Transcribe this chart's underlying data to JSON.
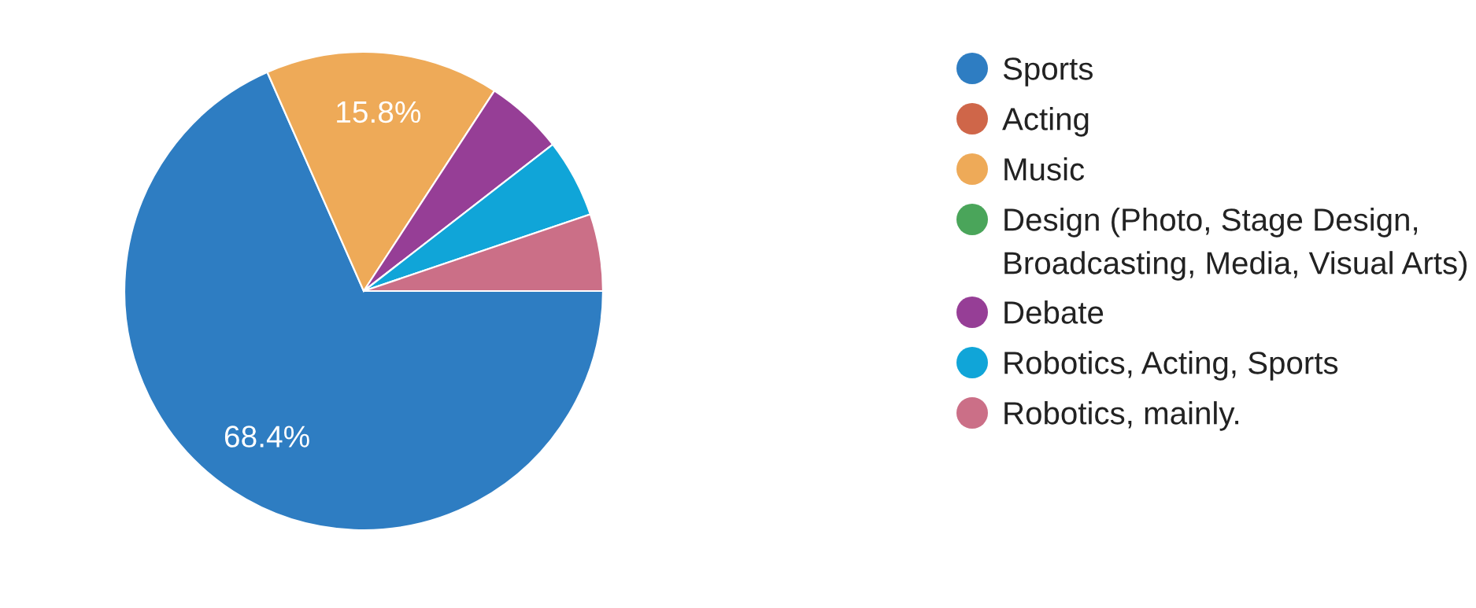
{
  "chart_data": {
    "type": "pie",
    "categories": [
      "Sports",
      "Acting",
      "Music",
      "Design (Photo, Stage Design, Broadcasting, Media, Visual Arts)",
      "Debate",
      "Robotics, Acting, Sports",
      "Robotics, mainly."
    ],
    "values": [
      68.4,
      0,
      15.8,
      0,
      5.3,
      5.3,
      5.2
    ],
    "colors": [
      "#2e7dc2",
      "#cf6649",
      "#eeaa58",
      "#4aa55a",
      "#963e96",
      "#10a5d8",
      "#cb6f87"
    ],
    "value_labels": [
      "68.4%",
      null,
      "15.8%",
      null,
      null,
      null,
      null
    ],
    "legend": "right"
  }
}
